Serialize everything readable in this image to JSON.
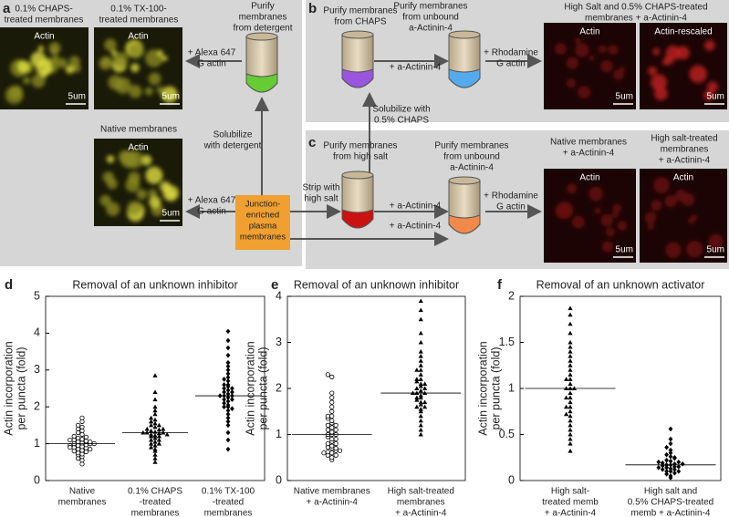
{
  "diagram": {
    "panel_letters": [
      "a",
      "b",
      "c"
    ],
    "captions": [
      [
        "0.1% CHAPS-",
        "treated membranes"
      ],
      [
        "0.1% TX-100-",
        "treated membranes"
      ],
      [
        "Purify",
        "membranes",
        "from detergent"
      ],
      [
        "+ Alexa 647",
        "G actin"
      ],
      [
        "Solubilize",
        "with detergent"
      ],
      [
        "Native membranes"
      ],
      [
        "+ Alexa 647",
        "G actin"
      ],
      [
        "Purify membranes",
        "from CHAPS"
      ],
      [
        "+ a-Actinin-4"
      ],
      [
        "Purify membranes",
        "from unbound",
        "a-Actinin-4"
      ],
      [
        "+ Rhodamine",
        "G actin"
      ],
      [
        "High Salt and 0.5% CHAPS-treated",
        "membranes + a-Actinin-4"
      ],
      [
        "Solubilize with",
        "0.5% CHAPS"
      ],
      [
        "Purify membranes",
        "from high salt"
      ],
      [
        "Strip with",
        "high salt"
      ],
      [
        "+ a-Actinin-4"
      ],
      [
        "+ a-Actinin-4"
      ],
      [
        "Purify membranes",
        "from unbound",
        "a-Actinin-4"
      ],
      [
        "+ Rhodamine",
        "G actin"
      ],
      [
        "Native membranes",
        "+ a-Actinin-4"
      ],
      [
        "High salt-treated",
        "membranes",
        "+ a-Actinin-4"
      ]
    ],
    "images": [
      {
        "label": "Actin",
        "scale": "5um"
      },
      {
        "label": "Actin",
        "scale": "5um"
      },
      {
        "label": "Actin",
        "scale": "5um"
      },
      {
        "label": "Actin",
        "scale": "5um"
      },
      {
        "label": "Actin-rescaled",
        "scale": "5um"
      },
      {
        "label": "Actin",
        "scale": "5um"
      },
      {
        "label": "Actin",
        "scale": "5um"
      }
    ],
    "junction_box": [
      "Junction-",
      "enriched",
      "plasma",
      "membranes"
    ]
  },
  "chart_data": [
    {
      "type": "dot",
      "panel": "d",
      "title": "Removal of an unknown inhibitor",
      "ylabel": [
        "Actin incorporation",
        "per puncta (fold)"
      ],
      "ylim": [
        0,
        5
      ],
      "yticks": [
        0,
        1,
        2,
        3,
        4,
        5
      ],
      "series": [
        {
          "name": [
            "Native",
            "membranes"
          ],
          "marker": "circle-open",
          "color": "#000000",
          "median": 1.0,
          "values": [
            0.45,
            0.55,
            0.6,
            0.65,
            0.7,
            0.72,
            0.75,
            0.78,
            0.8,
            0.82,
            0.85,
            0.88,
            0.9,
            0.92,
            0.95,
            0.97,
            1.0,
            1.0,
            1.02,
            1.05,
            1.07,
            1.1,
            1.12,
            1.15,
            1.18,
            1.2,
            1.25,
            1.3,
            1.35,
            1.4,
            1.45,
            1.5,
            1.6,
            1.7,
            0.85,
            0.95,
            1.05,
            1.1,
            0.9,
            1.0
          ]
        },
        {
          "name": [
            "0.1% CHAPS",
            "-treated",
            "membranes"
          ],
          "marker": "triangle",
          "color": "#000000",
          "median": 1.3,
          "values": [
            0.5,
            0.6,
            0.7,
            0.8,
            0.85,
            0.9,
            0.95,
            1.0,
            1.05,
            1.1,
            1.15,
            1.2,
            1.22,
            1.25,
            1.28,
            1.3,
            1.3,
            1.32,
            1.35,
            1.38,
            1.4,
            1.45,
            1.5,
            1.55,
            1.6,
            1.65,
            1.7,
            1.8,
            1.9,
            2.0,
            2.2,
            2.4,
            2.85,
            1.2,
            1.4,
            1.1,
            1.3,
            1.5,
            1.0,
            1.25
          ]
        },
        {
          "name": [
            "0.1% TX-100",
            "-treated",
            "membranes"
          ],
          "marker": "diamond",
          "color": "#000000",
          "median": 2.3,
          "values": [
            0.85,
            1.1,
            1.3,
            1.5,
            1.6,
            1.7,
            1.8,
            1.9,
            2.0,
            2.05,
            2.1,
            2.15,
            2.2,
            2.25,
            2.3,
            2.3,
            2.35,
            2.4,
            2.45,
            2.5,
            2.55,
            2.6,
            2.7,
            2.8,
            2.9,
            3.0,
            3.1,
            3.2,
            3.4,
            3.6,
            3.8,
            4.05,
            2.2,
            2.4,
            2.6,
            2.0,
            2.3,
            2.5,
            1.95,
            2.75
          ]
        }
      ]
    },
    {
      "type": "dot",
      "panel": "e",
      "title": "Removal of an unknown inhibitor",
      "ylabel": [
        "Actin incorporation",
        "per puncta (fold)"
      ],
      "ylim": [
        0,
        4
      ],
      "yticks": [
        0,
        1,
        2,
        3,
        4
      ],
      "series": [
        {
          "name": [
            "Native membranes",
            "+ a-Actinin-4"
          ],
          "marker": "circle-open",
          "color": "#000000",
          "median": 1.0,
          "values": [
            0.45,
            0.5,
            0.55,
            0.6,
            0.62,
            0.65,
            0.7,
            0.72,
            0.75,
            0.8,
            0.85,
            0.9,
            0.95,
            1.0,
            1.0,
            1.05,
            1.1,
            1.15,
            1.2,
            1.25,
            1.3,
            1.35,
            1.4,
            1.5,
            1.6,
            1.7,
            1.8,
            1.9,
            2.25,
            2.3,
            0.6,
            0.7,
            0.8,
            1.2,
            1.4,
            0.55,
            0.65,
            1.0,
            1.1,
            0.9
          ]
        },
        {
          "name": [
            "High salt-treated",
            "membranes",
            "+ a-Actinin-4"
          ],
          "marker": "triangle",
          "color": "#000000",
          "median": 1.9,
          "values": [
            1.0,
            1.1,
            1.2,
            1.3,
            1.4,
            1.5,
            1.55,
            1.6,
            1.65,
            1.7,
            1.75,
            1.8,
            1.85,
            1.9,
            1.9,
            1.95,
            2.0,
            2.05,
            2.1,
            2.15,
            2.2,
            2.3,
            2.4,
            2.5,
            2.6,
            2.7,
            2.8,
            3.0,
            3.2,
            3.5,
            3.7,
            3.9,
            1.8,
            2.0,
            2.2,
            1.7,
            1.9,
            2.1,
            1.6,
            2.4
          ]
        }
      ]
    },
    {
      "type": "dot",
      "panel": "f",
      "title": "Removal of an unknown activator",
      "ylabel": [
        "Actin incorporation",
        "per puncta (fold)"
      ],
      "ylim": [
        0,
        2
      ],
      "yticks": [
        0,
        0.5,
        1,
        1.5,
        2
      ],
      "series": [
        {
          "name": [
            "High salt-",
            "treated memb",
            "+ a-Actinin-4"
          ],
          "marker": "triangle",
          "color": "#000000",
          "median": 1.0,
          "values": [
            0.32,
            0.4,
            0.45,
            0.5,
            0.55,
            0.6,
            0.65,
            0.7,
            0.72,
            0.75,
            0.8,
            0.85,
            0.9,
            0.95,
            1.0,
            1.0,
            1.05,
            1.1,
            1.15,
            1.2,
            1.25,
            1.3,
            1.35,
            1.4,
            1.45,
            1.5,
            1.6,
            1.7,
            1.8,
            1.87,
            0.9,
            1.0,
            1.1,
            0.8
          ]
        },
        {
          "name": [
            "High salt and",
            "0.5% CHAPS-treated",
            "memb + a-Actinin-4"
          ],
          "marker": "diamond",
          "color": "#000000",
          "median": 0.17,
          "values": [
            0.03,
            0.05,
            0.07,
            0.08,
            0.1,
            0.1,
            0.12,
            0.13,
            0.14,
            0.15,
            0.16,
            0.17,
            0.17,
            0.18,
            0.19,
            0.2,
            0.21,
            0.22,
            0.24,
            0.26,
            0.28,
            0.3,
            0.33,
            0.36,
            0.4,
            0.45,
            0.56,
            0.15,
            0.2,
            0.12,
            0.18,
            0.25,
            0.14,
            0.1
          ]
        }
      ]
    }
  ]
}
